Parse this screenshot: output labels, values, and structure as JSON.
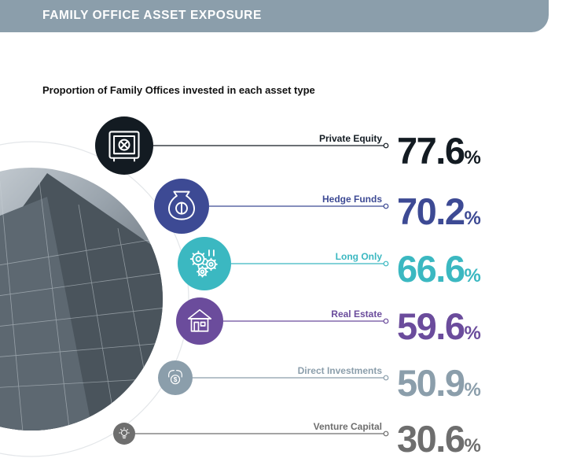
{
  "header": {
    "title": "FAMILY OFFICE ASSET EXPOSURE"
  },
  "subtitle": "Proportion of Family Offices invested in each asset type",
  "colors": {
    "header_bg": "#8b9eab"
  },
  "chart_data": {
    "type": "bar",
    "title": "Proportion of Family Offices invested in each asset type",
    "unit": "%",
    "categories": [
      "Private Equity",
      "Hedge Funds",
      "Long Only",
      "Real Estate",
      "Direct Investments",
      "Venture Capital"
    ],
    "values": [
      77.6,
      70.2,
      66.6,
      59.6,
      50.9,
      30.6
    ],
    "value_labels": [
      "77.6",
      "70.2",
      "66.6",
      "59.6",
      "50.9",
      "30.6"
    ],
    "colors": [
      "#131b22",
      "#3d4a94",
      "#3bb8c1",
      "#6b4c9c",
      "#8b9eab",
      "#6e6e6e"
    ],
    "icons": [
      "safe-icon",
      "money-bag-icon",
      "gears-icon",
      "house-icon",
      "dollar-arrows-icon",
      "lightbulb-icon"
    ]
  }
}
